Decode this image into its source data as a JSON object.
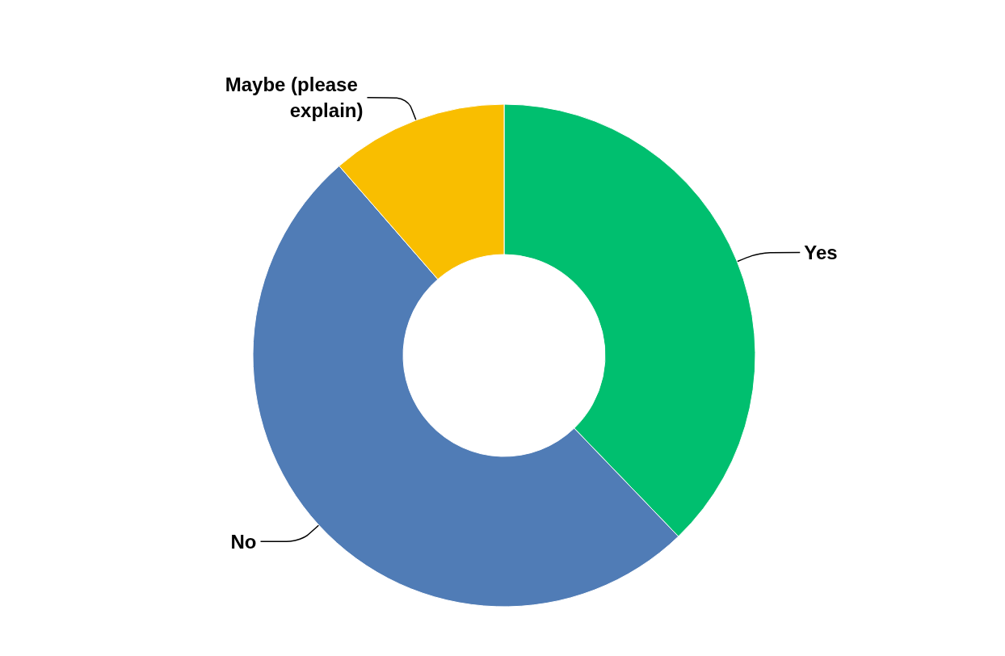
{
  "chart_data": {
    "type": "donut",
    "categories": [
      "Yes",
      "No",
      "Maybe (please explain)"
    ],
    "values": [
      37.8,
      50.8,
      11.4
    ],
    "colors": [
      "#00bf6f",
      "#507cb6",
      "#f9be00"
    ],
    "legend": false
  }
}
